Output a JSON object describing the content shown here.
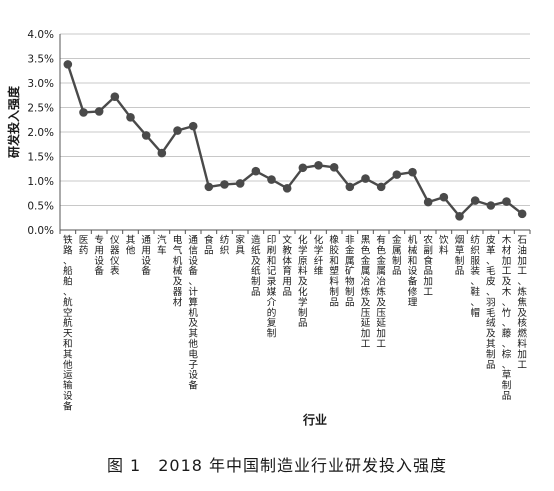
{
  "caption": "图 1　2018 年中国制造业行业研发投入强度",
  "chart_data": {
    "type": "line",
    "xlabel": "行业",
    "ylabel": "研发投入强度",
    "ylim": [
      0,
      4.0
    ],
    "yticks": [
      "0.0%",
      "0.5%",
      "1.0%",
      "1.5%",
      "2.0%",
      "2.5%",
      "3.0%",
      "3.5%",
      "4.0%"
    ],
    "grid": true,
    "colors": {
      "line": "#4a4a4a",
      "grid": "#c8c8c8",
      "axis": "#555555"
    },
    "categories": [
      "铁路、船舶、航空航天和其他运输设备",
      "医药",
      "专用设备",
      "仪器仪表",
      "其他",
      "通用设备",
      "汽车",
      "电气机械及器材",
      "通信设备、计算机及其他电子设备",
      "食品",
      "纺织",
      "家具",
      "造纸及纸制品",
      "印刷和记录媒介的复制",
      "文教体育用品",
      "化学原料及化学制品",
      "化学纤维",
      "橡胶和塑料制品",
      "非金属矿物制品",
      "黑色金属冶炼及压延加工",
      "有色金属冶炼及压延加工",
      "金属制品",
      "机械和设备修理",
      "农副食品加工",
      "饮料",
      "烟草制品",
      "纺织服装、鞋、帽",
      "皮革、毛皮、羽毛绒及其制品",
      "木材加工及木、竹、藤、棕、草制品",
      "石油加工、炼焦及核燃料加工"
    ],
    "values": [
      3.38,
      2.4,
      2.42,
      2.72,
      2.3,
      1.93,
      1.57,
      2.03,
      2.12,
      0.88,
      0.93,
      0.95,
      1.2,
      1.03,
      0.85,
      1.27,
      1.32,
      1.28,
      0.88,
      1.05,
      0.88,
      1.13,
      1.18,
      0.57,
      0.67,
      0.28,
      0.6,
      0.5,
      0.58,
      0.33
    ]
  }
}
